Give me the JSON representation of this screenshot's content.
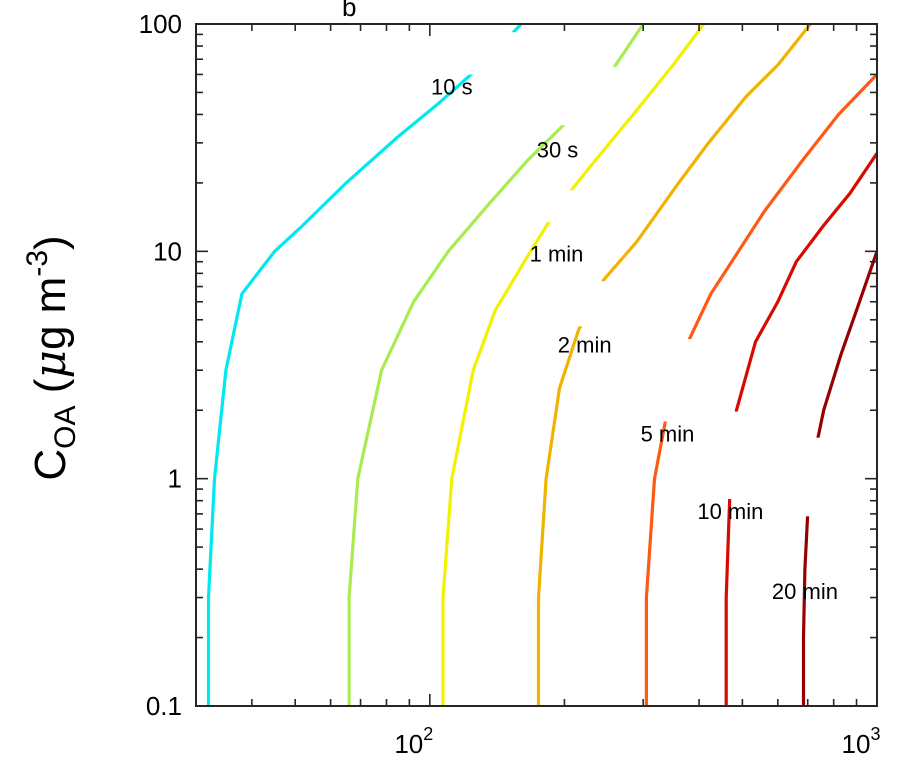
{
  "chart_data": {
    "type": "line",
    "xscale": "log",
    "yscale": "log",
    "xlim": [
      30,
      1000
    ],
    "ylim": [
      0.1,
      100
    ],
    "x_ticks": [
      {
        "value": 100,
        "base": "10",
        "exp": "2"
      },
      {
        "value": 1000,
        "base": "10",
        "exp": "3"
      }
    ],
    "y_ticks": [
      {
        "value": 0.1,
        "label": "0.1"
      },
      {
        "value": 1,
        "label": "1"
      },
      {
        "value": 10,
        "label": "10"
      },
      {
        "value": 100,
        "label": "100"
      }
    ],
    "ylabel": {
      "base": "C",
      "sub": "OA",
      "open": " (",
      "mu": "μ",
      "unit": "g m",
      "sup": "-3",
      "close": ")"
    },
    "stray_text": {
      "top_letter": "b"
    },
    "grid": false,
    "series": [
      {
        "name": "10 s",
        "color": "#00e8f0",
        "points": [
          [
            32,
            0.1
          ],
          [
            32,
            0.3
          ],
          [
            33,
            1
          ],
          [
            35,
            3
          ],
          [
            38,
            6.5
          ],
          [
            45,
            10
          ],
          [
            52,
            13
          ],
          [
            65,
            20
          ],
          [
            85,
            32
          ],
          [
            105,
            45
          ],
          [
            135,
            70
          ],
          [
            160,
            100
          ]
        ],
        "label_pos": [
          112,
          53
        ],
        "label_gap": [
          0.6,
          0.85
        ]
      },
      {
        "name": "30 s",
        "color": "#a8ec50",
        "points": [
          [
            66,
            0.1
          ],
          [
            66,
            0.3
          ],
          [
            69,
            1
          ],
          [
            78,
            3
          ],
          [
            92,
            6
          ],
          [
            110,
            10
          ],
          [
            135,
            16
          ],
          [
            165,
            25
          ],
          [
            205,
            38
          ],
          [
            255,
            62
          ],
          [
            300,
            100
          ]
        ],
        "label_pos": [
          193,
          28
        ],
        "label_gap": [
          0.45,
          0.75
        ]
      },
      {
        "name": "1 min",
        "color": "#f2f200",
        "points": [
          [
            107,
            0.1
          ],
          [
            107,
            0.3
          ],
          [
            112,
            1
          ],
          [
            125,
            3
          ],
          [
            140,
            5.5
          ],
          [
            168,
            10
          ],
          [
            195,
            16
          ],
          [
            230,
            24
          ],
          [
            285,
            40
          ],
          [
            350,
            66
          ],
          [
            410,
            100
          ]
        ],
        "label_pos": [
          192,
          9.8
        ],
        "label_gap": [
          0.55,
          0.7
        ]
      },
      {
        "name": "2 min",
        "color": "#f2b300",
        "points": [
          [
            175,
            0.1
          ],
          [
            175,
            0.3
          ],
          [
            182,
            1
          ],
          [
            195,
            2.5
          ],
          [
            215,
            4.5
          ],
          [
            245,
            7.5
          ],
          [
            290,
            11
          ],
          [
            360,
            20
          ],
          [
            420,
            30
          ],
          [
            510,
            48
          ],
          [
            600,
            66
          ],
          [
            710,
            100
          ]
        ],
        "label_pos": [
          222,
          3.9
        ],
        "label_gap": [
          0.55,
          0.8
        ]
      },
      {
        "name": "5 min",
        "color": "#ff5a14",
        "points": [
          [
            305,
            0.1
          ],
          [
            305,
            0.3
          ],
          [
            318,
            1
          ],
          [
            340,
            2
          ],
          [
            378,
            4
          ],
          [
            425,
            6.5
          ],
          [
            490,
            10
          ],
          [
            560,
            15
          ],
          [
            680,
            25
          ],
          [
            820,
            40
          ],
          [
            1000,
            60
          ]
        ],
        "label_pos": [
          340,
          1.58
        ],
        "label_gap": [
          0.4,
          0.85
        ]
      },
      {
        "name": "10 min",
        "color": "#d80a00",
        "points": [
          [
            460,
            0.1
          ],
          [
            460,
            0.3
          ],
          [
            470,
            1
          ],
          [
            485,
            2
          ],
          [
            535,
            4
          ],
          [
            600,
            6
          ],
          [
            660,
            9
          ],
          [
            760,
            13
          ],
          [
            870,
            18
          ],
          [
            1000,
            27
          ]
        ],
        "label_pos": [
          470,
          0.72
        ],
        "label_gap": [
          0.38,
          0.85
        ]
      },
      {
        "name": "20 min",
        "color": "#960000",
        "points": [
          [
            685,
            0.1
          ],
          [
            685,
            0.2
          ],
          [
            690,
            0.4
          ],
          [
            700,
            0.7
          ],
          [
            720,
            1.2
          ],
          [
            760,
            2
          ],
          [
            830,
            3.5
          ],
          [
            900,
            5.5
          ],
          [
            1000,
            10
          ]
        ],
        "label_pos": [
          690,
          0.32
        ],
        "label_gap": [
          0.22,
          0.45
        ]
      }
    ]
  }
}
